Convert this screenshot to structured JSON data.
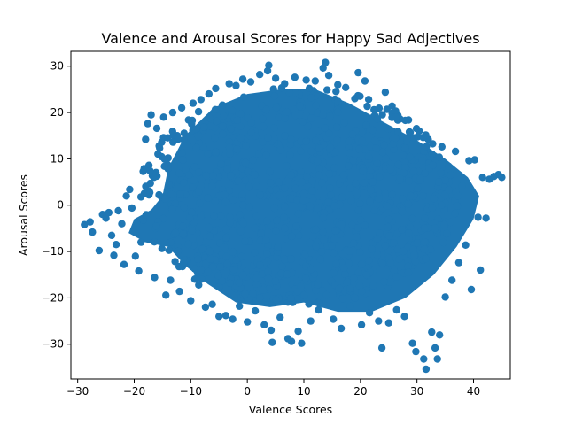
{
  "chart_data": {
    "type": "scatter",
    "title": "Valence and Arousal Scores for Happy Sad Adjectives",
    "xlabel": "Valence Scores",
    "ylabel": "Arousal Scores",
    "xlim": [
      -31.2,
      46.5
    ],
    "ylim": [
      -37.5,
      33.2
    ],
    "x_ticks": [
      -30,
      -20,
      -10,
      0,
      10,
      20,
      30,
      40
    ],
    "y_ticks": [
      -30,
      -20,
      -10,
      0,
      10,
      20,
      30
    ],
    "x_tick_labels": [
      "−30",
      "−20",
      "−10",
      "0",
      "10",
      "20",
      "30",
      "40"
    ],
    "y_tick_labels": [
      "−30",
      "−20",
      "−10",
      "0",
      "10",
      "20",
      "30"
    ],
    "grid": false,
    "legend": null,
    "marker_color": "#1f77b4",
    "cloud": {
      "description_of_shape": "dense blob centered near (10, 2); core ellipse radius ~22 in x and ~18 in y",
      "core": {
        "center": [
          9,
          2
        ],
        "rx": 21,
        "ry": 19
      },
      "left_tail_center": [
        -18,
        -7
      ],
      "right_tail_center": [
        37,
        3
      ]
    },
    "points": [
      [
        -28.8,
        -4.2
      ],
      [
        -27.8,
        -3.6
      ],
      [
        -27.4,
        -5.8
      ],
      [
        -26.2,
        -9.8
      ],
      [
        -25.6,
        -2.0
      ],
      [
        -25.0,
        -2.8
      ],
      [
        -24.5,
        -1.6
      ],
      [
        -24.0,
        -6.5
      ],
      [
        -23.6,
        -10.8
      ],
      [
        -23.2,
        -8.5
      ],
      [
        -22.8,
        -1.2
      ],
      [
        -22.2,
        -4.0
      ],
      [
        -21.8,
        -12.8
      ],
      [
        -21.4,
        2.0
      ],
      [
        -20.8,
        3.4
      ],
      [
        -20.4,
        -0.6
      ],
      [
        -19.8,
        -11.0
      ],
      [
        -19.2,
        -14.2
      ],
      [
        -18.8,
        -8.0
      ],
      [
        -18.4,
        -3.2
      ],
      [
        -18.0,
        14.2
      ],
      [
        -17.6,
        17.6
      ],
      [
        -17.4,
        8.6
      ],
      [
        -17.0,
        19.5
      ],
      [
        -16.8,
        6.4
      ],
      [
        -16.4,
        -15.6
      ],
      [
        -16.0,
        16.6
      ],
      [
        -15.6,
        12.8
      ],
      [
        -15.2,
        1.8
      ],
      [
        -14.8,
        19.0
      ],
      [
        -14.4,
        -19.4
      ],
      [
        -14.0,
        10.2
      ],
      [
        -13.6,
        -16.2
      ],
      [
        -13.2,
        20.0
      ],
      [
        -12.8,
        -6.0
      ],
      [
        -12.4,
        15.0
      ],
      [
        -12.0,
        -18.6
      ],
      [
        -11.6,
        21.0
      ],
      [
        -11.2,
        5.4
      ],
      [
        -10.8,
        -11.8
      ],
      [
        -10.4,
        18.4
      ],
      [
        -10.0,
        -20.6
      ],
      [
        -9.6,
        22.0
      ],
      [
        -9.0,
        2.4
      ],
      [
        -8.6,
        -17.2
      ],
      [
        -8.2,
        22.8
      ],
      [
        -7.8,
        12.6
      ],
      [
        -7.4,
        -22.0
      ],
      [
        -6.8,
        24.0
      ],
      [
        -6.2,
        -21.4
      ],
      [
        -5.6,
        25.2
      ],
      [
        -5.0,
        -24.0
      ],
      [
        -4.4,
        21.6
      ],
      [
        -3.8,
        -23.8
      ],
      [
        -3.2,
        26.2
      ],
      [
        -2.6,
        -24.6
      ],
      [
        -2.0,
        25.8
      ],
      [
        -1.4,
        -21.8
      ],
      [
        -0.8,
        27.2
      ],
      [
        0.0,
        -25.2
      ],
      [
        0.6,
        26.6
      ],
      [
        1.4,
        -22.8
      ],
      [
        2.2,
        28.2
      ],
      [
        3.0,
        -25.8
      ],
      [
        3.6,
        29.0
      ],
      [
        3.8,
        30.2
      ],
      [
        4.2,
        -27.0
      ],
      [
        4.4,
        -29.6
      ],
      [
        5.0,
        27.4
      ],
      [
        5.8,
        -24.2
      ],
      [
        6.6,
        26.2
      ],
      [
        7.2,
        -28.8
      ],
      [
        7.8,
        -29.4
      ],
      [
        8.4,
        27.6
      ],
      [
        9.0,
        -27.2
      ],
      [
        9.6,
        -29.8
      ],
      [
        10.4,
        27.0
      ],
      [
        11.2,
        -25.0
      ],
      [
        12.0,
        26.8
      ],
      [
        12.6,
        -22.6
      ],
      [
        13.4,
        29.6
      ],
      [
        13.8,
        30.8
      ],
      [
        14.4,
        28.0
      ],
      [
        15.2,
        -24.6
      ],
      [
        16.0,
        26.0
      ],
      [
        16.6,
        -26.6
      ],
      [
        17.4,
        25.4
      ],
      [
        18.2,
        -21.8
      ],
      [
        19.0,
        23.0
      ],
      [
        19.6,
        28.6
      ],
      [
        20.2,
        -25.8
      ],
      [
        20.8,
        26.8
      ],
      [
        21.6,
        -23.2
      ],
      [
        22.4,
        20.6
      ],
      [
        23.2,
        -25.0
      ],
      [
        23.8,
        -30.8
      ],
      [
        24.4,
        24.4
      ],
      [
        25.0,
        -25.4
      ],
      [
        25.6,
        21.4
      ],
      [
        26.4,
        -22.6
      ],
      [
        27.0,
        18.6
      ],
      [
        27.8,
        -24.0
      ],
      [
        28.4,
        14.6
      ],
      [
        29.2,
        -29.8
      ],
      [
        29.8,
        -31.6
      ],
      [
        30.4,
        16.0
      ],
      [
        31.2,
        -33.2
      ],
      [
        31.6,
        -35.4
      ],
      [
        32.0,
        14.2
      ],
      [
        32.6,
        -27.4
      ],
      [
        33.2,
        -30.8
      ],
      [
        33.6,
        -33.2
      ],
      [
        34.0,
        -28.0
      ],
      [
        34.4,
        12.6
      ],
      [
        35.0,
        -19.8
      ],
      [
        35.6,
        8.4
      ],
      [
        36.2,
        -16.2
      ],
      [
        36.8,
        11.6
      ],
      [
        37.4,
        -12.4
      ],
      [
        38.0,
        4.2
      ],
      [
        38.6,
        -8.6
      ],
      [
        39.2,
        9.6
      ],
      [
        39.6,
        -18.2
      ],
      [
        40.2,
        9.8
      ],
      [
        40.8,
        -2.6
      ],
      [
        41.2,
        -14.0
      ],
      [
        41.6,
        6.0
      ],
      [
        42.2,
        -2.8
      ],
      [
        42.8,
        5.6
      ],
      [
        43.6,
        6.2
      ],
      [
        44.4,
        6.6
      ],
      [
        45.0,
        6.0
      ]
    ]
  }
}
